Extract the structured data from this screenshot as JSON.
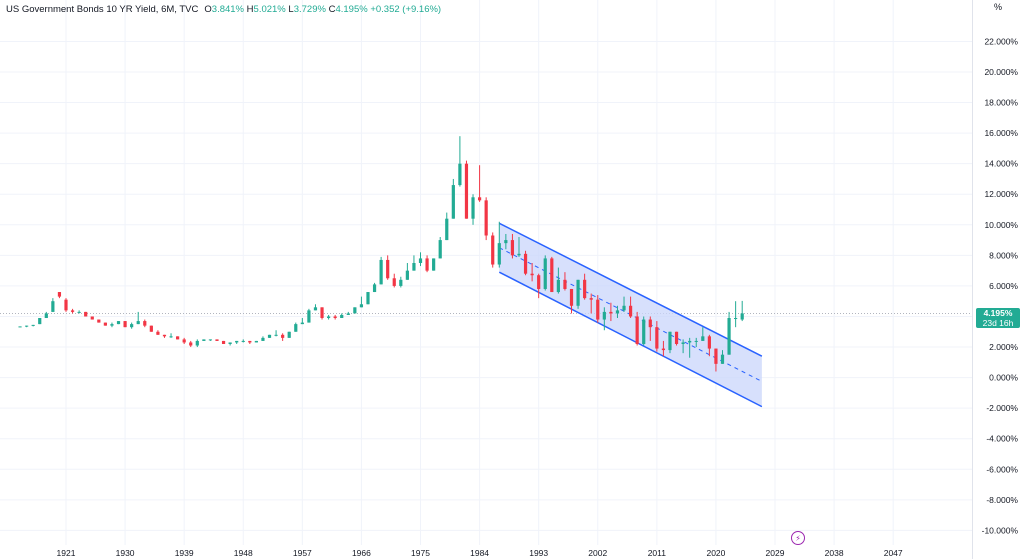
{
  "legend": {
    "symbol": "US Government Bonds 10 YR Yield, 6M, TVC",
    "open_label": "O",
    "open": "3.841%",
    "high_label": "H",
    "high": "5.021%",
    "low_label": "L",
    "low": "3.729%",
    "close_label": "C",
    "close": "4.195%",
    "change": "+0.352 (+9.16%)"
  },
  "unit": "%",
  "price_tag": {
    "value": "4.195%",
    "countdown": "23d 16h"
  },
  "colors": {
    "up": "#22ab94",
    "down": "#f23645",
    "channel": "#2962ff",
    "channel_fill": "#c9d6fb"
  },
  "icons": {
    "event": "lightning-icon"
  },
  "chart_data": {
    "type": "candlestick",
    "title": "",
    "xlabel": "",
    "ylabel": "",
    "ylim": [
      -10.5,
      23.2
    ],
    "xlim": [
      1914,
      2051
    ],
    "grid": true,
    "y_ticks": [
      "22.000%",
      "20.000%",
      "18.000%",
      "16.000%",
      "14.000%",
      "12.000%",
      "10.000%",
      "8.000%",
      "6.000%",
      "4.000%",
      "2.000%",
      "0.000%",
      "-2.000%",
      "-4.000%",
      "-6.000%",
      "-8.000%",
      "-10.000%"
    ],
    "y_tick_values": [
      22,
      20,
      18,
      16,
      14,
      12,
      10,
      8,
      6,
      4,
      2,
      0,
      -2,
      -4,
      -6,
      -8,
      -10
    ],
    "x_ticks": [
      "1921",
      "1930",
      "1939",
      "1948",
      "1957",
      "1966",
      "1975",
      "1984",
      "1993",
      "2002",
      "2011",
      "2020",
      "2029",
      "2038",
      "2047"
    ],
    "x_tick_values": [
      1921,
      1930,
      1939,
      1948,
      1957,
      1966,
      1975,
      1984,
      1993,
      2002,
      2011,
      2020,
      2029,
      2038,
      2047
    ],
    "last_price": 4.195,
    "channel": {
      "upper": [
        [
          1987,
          10.1
        ],
        [
          2027,
          1.4
        ]
      ],
      "lower": [
        [
          1987,
          6.9
        ],
        [
          2027,
          -1.9
        ]
      ],
      "mid": [
        [
          1987,
          8.5
        ],
        [
          2027,
          -0.25
        ]
      ]
    },
    "candles": [
      [
        1914,
        3.3,
        3.35,
        3.3,
        3.35
      ],
      [
        1915,
        3.35,
        3.4,
        3.3,
        3.4
      ],
      [
        1916,
        3.4,
        3.45,
        3.35,
        3.45
      ],
      [
        1917,
        3.5,
        3.9,
        3.5,
        3.9
      ],
      [
        1918,
        3.9,
        4.3,
        3.9,
        4.2
      ],
      [
        1919,
        4.3,
        5.2,
        4.3,
        5.0
      ],
      [
        1920,
        5.6,
        5.6,
        5.2,
        5.3
      ],
      [
        1921,
        5.1,
        5.2,
        4.3,
        4.4
      ],
      [
        1922,
        4.4,
        4.5,
        4.2,
        4.3
      ],
      [
        1923,
        4.3,
        4.4,
        4.2,
        4.3
      ],
      [
        1924,
        4.3,
        4.3,
        4.0,
        4.0
      ],
      [
        1925,
        4.0,
        4.0,
        3.8,
        3.8
      ],
      [
        1926,
        3.8,
        3.8,
        3.6,
        3.6
      ],
      [
        1927,
        3.6,
        3.6,
        3.4,
        3.4
      ],
      [
        1928,
        3.4,
        3.6,
        3.3,
        3.5
      ],
      [
        1929,
        3.5,
        3.7,
        3.5,
        3.7
      ],
      [
        1930,
        3.7,
        3.7,
        3.3,
        3.3
      ],
      [
        1931,
        3.3,
        3.6,
        3.2,
        3.5
      ],
      [
        1932,
        3.5,
        4.3,
        3.5,
        3.7
      ],
      [
        1933,
        3.7,
        3.8,
        3.3,
        3.4
      ],
      [
        1934,
        3.4,
        3.4,
        3.0,
        3.0
      ],
      [
        1935,
        3.0,
        3.1,
        2.8,
        2.8
      ],
      [
        1936,
        2.8,
        2.8,
        2.6,
        2.7
      ],
      [
        1937,
        2.7,
        2.9,
        2.6,
        2.7
      ],
      [
        1938,
        2.7,
        2.7,
        2.5,
        2.5
      ],
      [
        1939,
        2.5,
        2.6,
        2.2,
        2.3
      ],
      [
        1940,
        2.3,
        2.4,
        2.0,
        2.1
      ],
      [
        1941,
        2.1,
        2.5,
        2.0,
        2.4
      ],
      [
        1942,
        2.4,
        2.5,
        2.4,
        2.5
      ],
      [
        1943,
        2.5,
        2.5,
        2.4,
        2.5
      ],
      [
        1944,
        2.5,
        2.5,
        2.4,
        2.4
      ],
      [
        1945,
        2.4,
        2.4,
        2.2,
        2.2
      ],
      [
        1946,
        2.2,
        2.3,
        2.1,
        2.3
      ],
      [
        1947,
        2.3,
        2.4,
        2.2,
        2.4
      ],
      [
        1948,
        2.4,
        2.5,
        2.3,
        2.4
      ],
      [
        1949,
        2.4,
        2.4,
        2.2,
        2.3
      ],
      [
        1950,
        2.3,
        2.4,
        2.3,
        2.4
      ],
      [
        1951,
        2.4,
        2.7,
        2.4,
        2.6
      ],
      [
        1952,
        2.6,
        2.8,
        2.6,
        2.8
      ],
      [
        1953,
        2.8,
        3.1,
        2.7,
        2.8
      ],
      [
        1954,
        2.8,
        2.9,
        2.4,
        2.6
      ],
      [
        1955,
        2.6,
        3.0,
        2.6,
        3.0
      ],
      [
        1956,
        3.0,
        3.6,
        3.0,
        3.5
      ],
      [
        1957,
        3.5,
        3.9,
        3.5,
        3.6
      ],
      [
        1958,
        3.6,
        4.5,
        3.6,
        4.4
      ],
      [
        1959,
        4.4,
        4.8,
        4.4,
        4.6
      ],
      [
        1960,
        4.6,
        4.6,
        3.8,
        3.9
      ],
      [
        1961,
        3.9,
        4.1,
        3.8,
        4.0
      ],
      [
        1962,
        4.0,
        4.1,
        3.8,
        3.9
      ],
      [
        1963,
        3.9,
        4.2,
        3.9,
        4.1
      ],
      [
        1964,
        4.1,
        4.3,
        4.1,
        4.2
      ],
      [
        1965,
        4.2,
        4.6,
        4.2,
        4.6
      ],
      [
        1966,
        4.6,
        5.3,
        4.6,
        4.8
      ],
      [
        1967,
        4.8,
        5.6,
        4.8,
        5.6
      ],
      [
        1968,
        5.6,
        6.2,
        5.6,
        6.1
      ],
      [
        1969,
        6.1,
        7.9,
        6.1,
        7.7
      ],
      [
        1970,
        7.7,
        8.0,
        6.4,
        6.5
      ],
      [
        1971,
        6.5,
        6.8,
        5.9,
        6.0
      ],
      [
        1972,
        6.0,
        6.6,
        5.9,
        6.4
      ],
      [
        1973,
        6.4,
        7.5,
        6.4,
        7.0
      ],
      [
        1974,
        7.0,
        8.0,
        7.0,
        7.5
      ],
      [
        1975,
        7.5,
        8.2,
        7.3,
        7.8
      ],
      [
        1976,
        7.8,
        8.0,
        6.9,
        7.0
      ],
      [
        1977,
        7.0,
        7.8,
        7.0,
        7.8
      ],
      [
        1978,
        7.8,
        9.2,
        7.8,
        9.0
      ],
      [
        1979,
        9.0,
        10.8,
        9.0,
        10.4
      ],
      [
        1980,
        10.4,
        13.0,
        10.4,
        12.6
      ],
      [
        1981,
        12.6,
        15.8,
        12.5,
        14.0
      ],
      [
        1982,
        14.0,
        14.2,
        10.4,
        10.4
      ],
      [
        1983,
        10.4,
        12.0,
        10.0,
        11.8
      ],
      [
        1984,
        11.8,
        13.9,
        11.5,
        11.6
      ],
      [
        1985,
        11.6,
        11.8,
        9.0,
        9.3
      ],
      [
        1986,
        9.3,
        9.5,
        7.2,
        7.4
      ],
      [
        1987,
        7.4,
        10.2,
        7.2,
        8.8
      ],
      [
        1988,
        8.8,
        9.4,
        8.4,
        9.0
      ],
      [
        1989,
        9.0,
        9.4,
        7.8,
        8.0
      ],
      [
        1990,
        8.0,
        9.2,
        7.9,
        8.1
      ],
      [
        1991,
        8.1,
        8.3,
        6.7,
        6.8
      ],
      [
        1992,
        6.8,
        7.5,
        6.3,
        6.7
      ],
      [
        1993,
        6.7,
        6.8,
        5.2,
        5.8
      ],
      [
        1994,
        5.8,
        8.0,
        5.7,
        7.8
      ],
      [
        1995,
        7.8,
        7.9,
        5.6,
        5.6
      ],
      [
        1996,
        5.6,
        7.2,
        5.5,
        6.4
      ],
      [
        1997,
        6.4,
        6.9,
        5.7,
        5.8
      ],
      [
        1998,
        5.8,
        5.8,
        4.2,
        4.7
      ],
      [
        1999,
        4.7,
        6.4,
        4.5,
        6.4
      ],
      [
        2000,
        6.4,
        6.8,
        5.1,
        5.2
      ],
      [
        2001,
        5.2,
        5.5,
        4.2,
        5.1
      ],
      [
        2002,
        5.1,
        5.4,
        3.6,
        3.8
      ],
      [
        2003,
        3.8,
        4.6,
        3.1,
        4.3
      ],
      [
        2004,
        4.3,
        4.9,
        3.7,
        4.2
      ],
      [
        2005,
        4.2,
        4.7,
        3.9,
        4.4
      ],
      [
        2006,
        4.4,
        5.3,
        4.3,
        4.7
      ],
      [
        2007,
        4.7,
        5.3,
        3.9,
        4.0
      ],
      [
        2008,
        4.0,
        4.3,
        2.1,
        2.2
      ],
      [
        2009,
        2.2,
        4.0,
        2.1,
        3.8
      ],
      [
        2010,
        3.8,
        4.0,
        2.4,
        3.3
      ],
      [
        2011,
        3.3,
        3.7,
        1.7,
        1.9
      ],
      [
        2012,
        1.9,
        2.4,
        1.4,
        1.8
      ],
      [
        2013,
        1.8,
        3.0,
        1.6,
        3.0
      ],
      [
        2014,
        3.0,
        3.0,
        2.1,
        2.2
      ],
      [
        2015,
        2.2,
        2.5,
        1.6,
        2.3
      ],
      [
        2016,
        2.3,
        2.6,
        1.3,
        2.4
      ],
      [
        2017,
        2.4,
        2.6,
        2.0,
        2.4
      ],
      [
        2018,
        2.4,
        3.3,
        2.4,
        2.7
      ],
      [
        2019,
        2.7,
        2.8,
        1.4,
        1.9
      ],
      [
        2020,
        1.9,
        1.9,
        0.4,
        0.9
      ],
      [
        2021,
        0.9,
        1.8,
        0.9,
        1.5
      ],
      [
        2022,
        1.5,
        4.3,
        1.5,
        3.9
      ],
      [
        2023,
        3.9,
        5.0,
        3.3,
        3.9
      ],
      [
        2024,
        3.8,
        5.02,
        3.7,
        4.2
      ]
    ]
  }
}
